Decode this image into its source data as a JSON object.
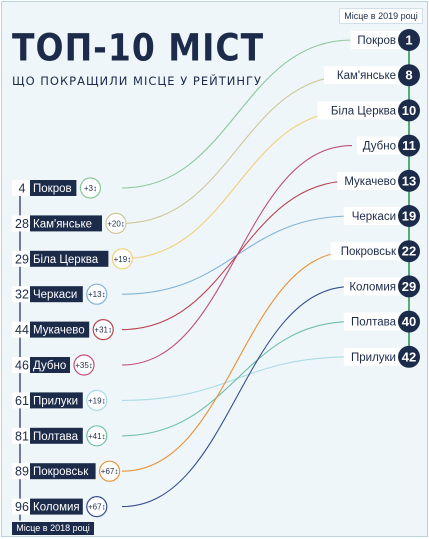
{
  "header": {
    "title": "ТОП-10 МІСТ",
    "subtitle": "ЩО ПОКРАЩИЛИ МІСЦЕ У РЕЙТИНГУ",
    "label_2019": "Місце в 2019 році",
    "label_2018": "Місце в 2018 році"
  },
  "chart_data": {
    "type": "slope",
    "title": "ТОП-10 МІСТ",
    "subtitle": "ЩО ПОКРАЩИЛИ МІСЦЕ У РЕЙТИНГУ",
    "left_label": "Місце в 2018 році",
    "right_label": "Місце в 2019 році",
    "left_order": [
      "Покров",
      "Кам'янське",
      "Біла Церква",
      "Черкаси",
      "Мукачево",
      "Дубно",
      "Прилуки",
      "Полтава",
      "Покровськ",
      "Коломия"
    ],
    "right_order": [
      "Покров",
      "Кам'янське",
      "Біла Церква",
      "Дубно",
      "Мукачево",
      "Черкаси",
      "Покровськ",
      "Коломия",
      "Полтава",
      "Прилуки"
    ],
    "cities": [
      {
        "name": "Покров",
        "rank_2018": 4,
        "rank_2019": 1,
        "change": "+3",
        "color": "#8cc79a"
      },
      {
        "name": "Кам'янське",
        "rank_2018": 28,
        "rank_2019": 8,
        "change": "+20",
        "color": "#cfc79a"
      },
      {
        "name": "Біла Церква",
        "rank_2018": 29,
        "rank_2019": 10,
        "change": "+19",
        "color": "#f3cf7e"
      },
      {
        "name": "Черкаси",
        "rank_2018": 32,
        "rank_2019": 19,
        "change": "+13",
        "color": "#7fb3d8"
      },
      {
        "name": "Мукачево",
        "rank_2018": 44,
        "rank_2019": 13,
        "change": "+31",
        "color": "#b84550"
      },
      {
        "name": "Дубно",
        "rank_2018": 46,
        "rank_2019": 11,
        "change": "+35",
        "color": "#c2507a"
      },
      {
        "name": "Прилуки",
        "rank_2018": 61,
        "rank_2019": 42,
        "change": "+19",
        "color": "#a9dce6"
      },
      {
        "name": "Полтава",
        "rank_2018": 81,
        "rank_2019": 40,
        "change": "+41",
        "color": "#6fbfa8"
      },
      {
        "name": "Покровськ",
        "rank_2018": 89,
        "rank_2019": 22,
        "change": "+67",
        "color": "#e8923a"
      },
      {
        "name": "Коломия",
        "rank_2018": 96,
        "rank_2019": 29,
        "change": "+67",
        "color": "#34508a"
      }
    ]
  }
}
